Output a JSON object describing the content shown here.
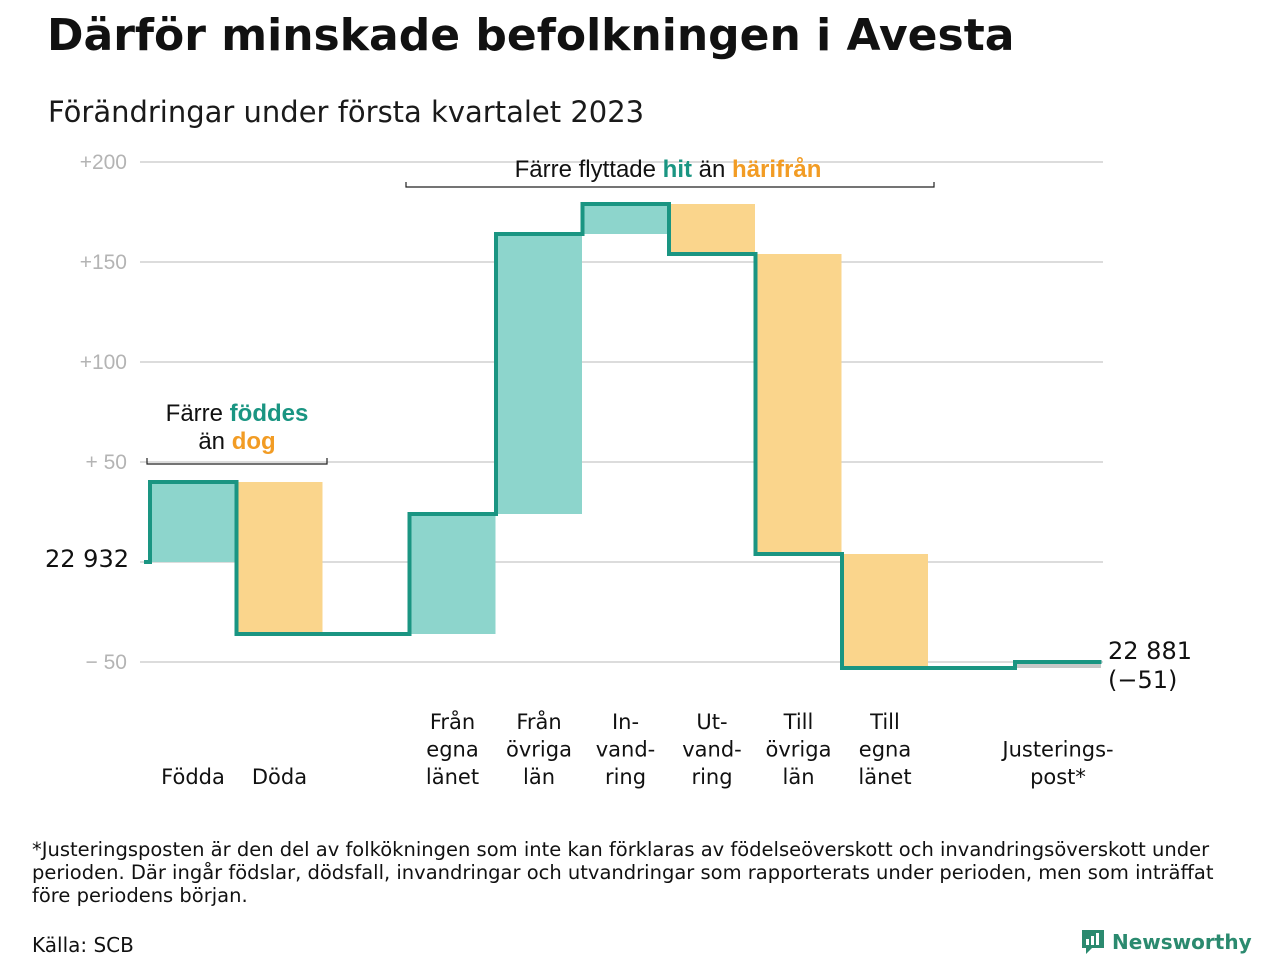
{
  "title": "Därför minskade befolkningen i Avesta",
  "subtitle": "Förändringar under första kvartalet 2023",
  "colors": {
    "increase": "#8dd5cc",
    "decrease": "#fad58c",
    "adjustment": "#c8c8c8",
    "line": "#1a9582",
    "grid": "#dcdcdc",
    "teal_text": "#1a9582",
    "orange_text": "#f29c24"
  },
  "chart_data": {
    "type": "bar",
    "subtype": "waterfall",
    "start_value": 22932,
    "start_label": "22 932",
    "end_label": "22 881",
    "end_change_label": "(−51)",
    "ylim": [
      -50,
      200
    ],
    "yticks": [
      {
        "value": 200,
        "label": "+200"
      },
      {
        "value": 150,
        "label": "+150"
      },
      {
        "value": 100,
        "label": "+100"
      },
      {
        "value": 50,
        "label": "+ 50"
      },
      {
        "value": 0,
        "label": ""
      },
      {
        "value": -50,
        "label": "− 50"
      }
    ],
    "categories": [
      {
        "label": [
          "Födda"
        ],
        "change": 40,
        "kind": "increase"
      },
      {
        "label": [
          "Döda"
        ],
        "change": -76,
        "kind": "decrease"
      },
      {
        "label": [],
        "change": 0,
        "kind": "gap"
      },
      {
        "label": [
          "Från",
          "egna",
          "länet"
        ],
        "change": 60,
        "kind": "increase"
      },
      {
        "label": [
          "Från",
          "övriga",
          "län"
        ],
        "change": 140,
        "kind": "increase"
      },
      {
        "label": [
          "In-",
          "vand-",
          "ring"
        ],
        "change": 15,
        "kind": "increase"
      },
      {
        "label": [
          "Ut-",
          "vand-",
          "ring"
        ],
        "change": -25,
        "kind": "decrease"
      },
      {
        "label": [
          "Till",
          "övriga",
          "län"
        ],
        "change": -150,
        "kind": "decrease"
      },
      {
        "label": [
          "Till",
          "egna",
          "länet"
        ],
        "change": -57,
        "kind": "decrease"
      },
      {
        "label": [],
        "change": 0,
        "kind": "gap"
      },
      {
        "label": [
          "Justerings-",
          "post*"
        ],
        "change": 3,
        "kind": "adjustment"
      }
    ],
    "annotations": {
      "births": {
        "line1": [
          "Färre ",
          "föddes"
        ],
        "line2": [
          "än ",
          "dog"
        ]
      },
      "moves": [
        "Färre flyttade ",
        "hit",
        " än ",
        "härifrån"
      ]
    }
  },
  "footnote": "*Justeringsposten är den del av folkökningen som inte kan förklaras av födelseöverskott och invandringsöverskott under perioden. Där ingår födslar, dödsfall, invandringar och utvandringar som rapporterats under perioden, men som inträffat före periodens början.",
  "source": "Källa: SCB",
  "brand": {
    "name": "Newsworthy",
    "icon": "newsworthy-logo-icon"
  }
}
